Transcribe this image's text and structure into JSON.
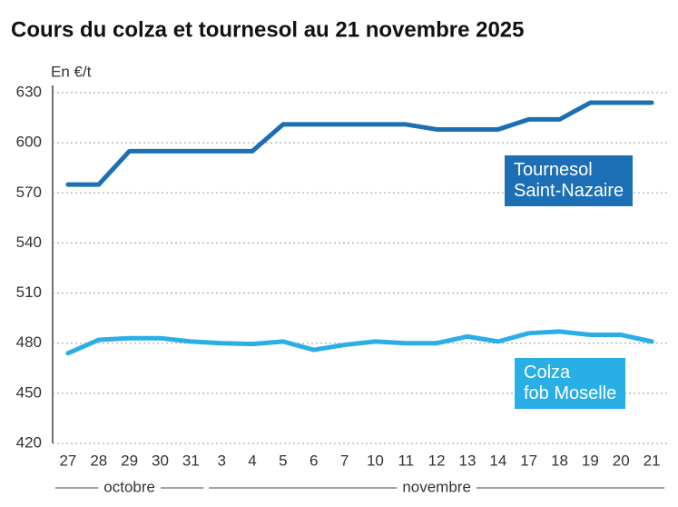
{
  "chart_data": {
    "type": "line",
    "title": "Cours du colza et tournesol au 21 novembre 2025",
    "y_label": "En €/t",
    "categories": [
      "27",
      "28",
      "29",
      "30",
      "31",
      "3",
      "4",
      "5",
      "6",
      "7",
      "10",
      "11",
      "12",
      "13",
      "14",
      "17",
      "18",
      "19",
      "20",
      "21"
    ],
    "groups": [
      "octobre",
      "novembre"
    ],
    "series": [
      {
        "name": "Tournesol\nSaint-Nazaire",
        "color": "#1c6fb4",
        "values": [
          575,
          575,
          595,
          595,
          595,
          595,
          595,
          611,
          611,
          611,
          611,
          611,
          608,
          608,
          608,
          614,
          614,
          624,
          624,
          624
        ]
      },
      {
        "name": "Colza\nfob Moselle",
        "color": "#2aaee6",
        "values": [
          474,
          482,
          483,
          483,
          481,
          480,
          479.5,
          481,
          476,
          479,
          481,
          480,
          480,
          484,
          481,
          486,
          487,
          485,
          485,
          481
        ]
      }
    ],
    "ylim": [
      420,
      630
    ],
    "yticks": [
      420,
      450,
      480,
      510,
      540,
      570,
      600,
      630
    ],
    "grid": true
  }
}
